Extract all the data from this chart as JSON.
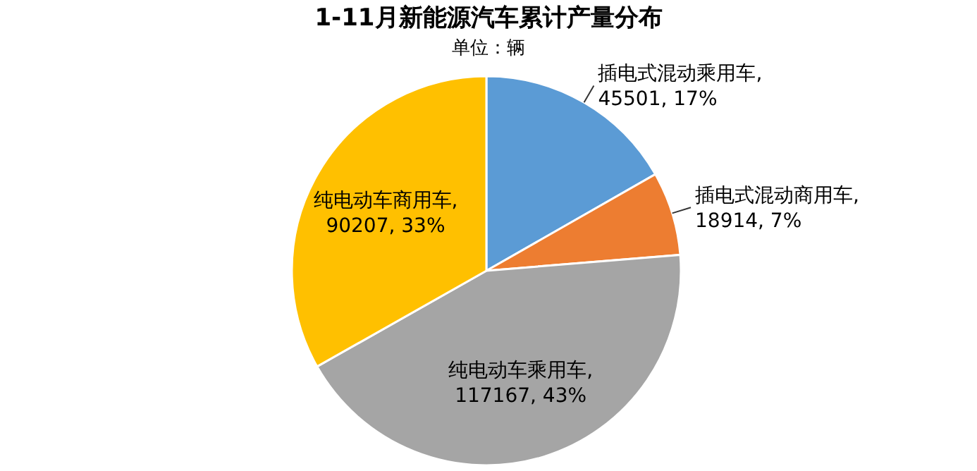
{
  "chart_data": {
    "type": "pie",
    "title": "1-11月新能源汽车累计产量分布",
    "subtitle": "单位：辆",
    "categories": [
      "插电式混动乘用车",
      "插电式混动商用车",
      "纯电动车乘用车",
      "纯电动车商用车"
    ],
    "values": [
      45501,
      18914,
      117167,
      90207
    ],
    "colors": [
      "#5b9bd5",
      "#ed7d31",
      "#a5a5a5",
      "#ffc000"
    ],
    "value_labels": [
      ", 45501, 17%",
      ", 18914, 7%",
      ", 117167, 43%",
      ", 90207, 33%"
    ]
  }
}
